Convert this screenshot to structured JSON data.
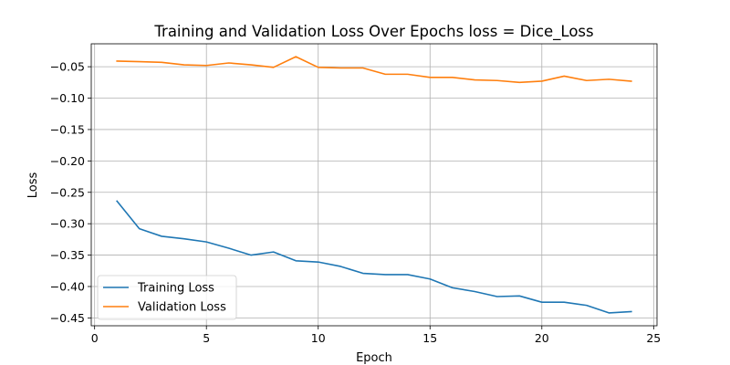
{
  "chart_data": {
    "type": "line",
    "title": "Training and Validation Loss Over Epochs loss = Dice_Loss",
    "xlabel": "Epoch",
    "ylabel": "Loss",
    "xlim": [
      -0.15,
      25.15
    ],
    "ylim": [
      -0.4625,
      -0.0135
    ],
    "xticks": [
      0,
      5,
      10,
      15,
      20,
      25
    ],
    "yticks": [
      -0.45,
      -0.4,
      -0.35,
      -0.3,
      -0.25,
      -0.2,
      -0.15,
      -0.1,
      -0.05
    ],
    "grid": true,
    "legend_position": "lower-left",
    "x": [
      1,
      2,
      3,
      4,
      5,
      6,
      7,
      8,
      9,
      10,
      11,
      12,
      13,
      14,
      15,
      16,
      17,
      18,
      19,
      20,
      21,
      22,
      23,
      24
    ],
    "series": [
      {
        "name": "Training Loss",
        "color": "#1f77b4",
        "values": [
          -0.264,
          -0.308,
          -0.32,
          -0.324,
          -0.329,
          -0.339,
          -0.35,
          -0.345,
          -0.359,
          -0.361,
          -0.368,
          -0.379,
          -0.381,
          -0.381,
          -0.388,
          -0.402,
          -0.408,
          -0.416,
          -0.415,
          -0.425,
          -0.425,
          -0.43,
          -0.442,
          -0.44
        ]
      },
      {
        "name": "Validation Loss",
        "color": "#ff7f0e",
        "values": [
          -0.041,
          -0.042,
          -0.043,
          -0.047,
          -0.048,
          -0.044,
          -0.047,
          -0.051,
          -0.034,
          -0.051,
          -0.052,
          -0.052,
          -0.062,
          -0.062,
          -0.067,
          -0.067,
          -0.071,
          -0.072,
          -0.075,
          -0.073,
          -0.065,
          -0.072,
          -0.07,
          -0.073
        ]
      }
    ]
  }
}
